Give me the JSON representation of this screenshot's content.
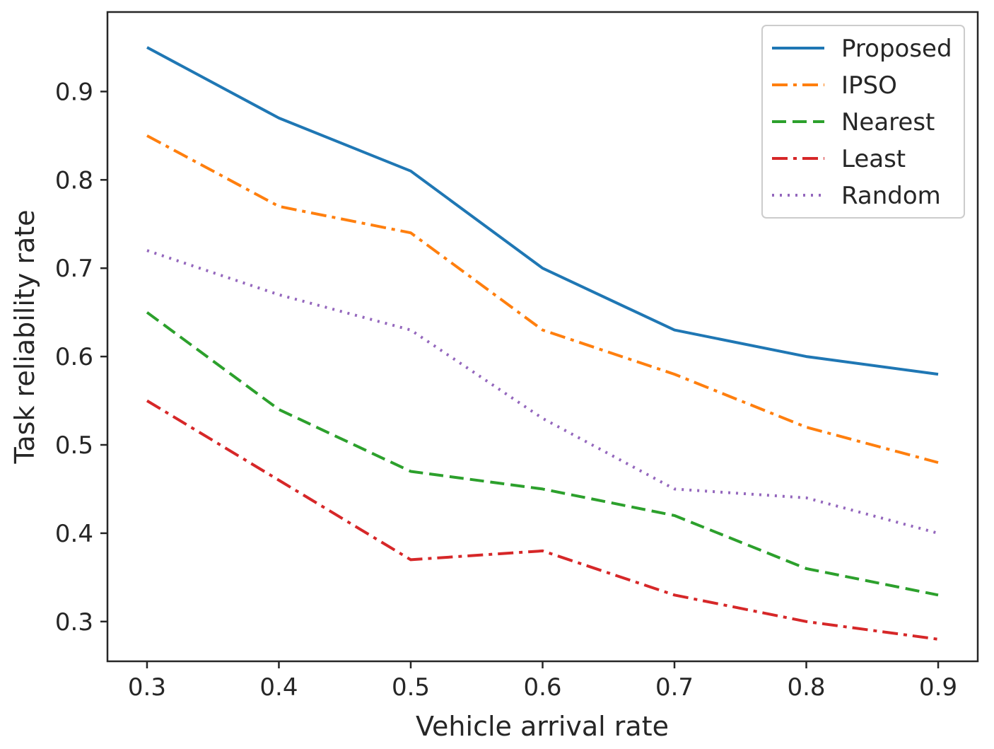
{
  "chart_data": {
    "type": "line",
    "title": "",
    "xlabel": "Vehicle arrival rate",
    "ylabel": "Task reliability rate",
    "x": [
      0.3,
      0.4,
      0.5,
      0.6,
      0.7,
      0.8,
      0.9
    ],
    "x_tick_labels": [
      "0.3",
      "0.4",
      "0.5",
      "0.6",
      "0.7",
      "0.8",
      "0.9"
    ],
    "y_ticks": [
      0.3,
      0.4,
      0.5,
      0.6,
      0.7,
      0.8,
      0.9
    ],
    "y_tick_labels": [
      "0.3",
      "0.4",
      "0.5",
      "0.6",
      "0.7",
      "0.8",
      "0.9"
    ],
    "xlim": [
      0.27,
      0.93
    ],
    "ylim": [
      0.255,
      0.99
    ],
    "grid": false,
    "legend_position": "top-right",
    "series": [
      {
        "name": "Proposed",
        "color": "#1f77b4",
        "style": "solid",
        "values": [
          0.95,
          0.87,
          0.81,
          0.7,
          0.63,
          0.6,
          0.58
        ]
      },
      {
        "name": "IPSO",
        "color": "#ff7f0e",
        "style": "dashdot",
        "values": [
          0.85,
          0.77,
          0.74,
          0.63,
          0.58,
          0.52,
          0.48
        ]
      },
      {
        "name": "Nearest",
        "color": "#2ca02c",
        "style": "dashed",
        "values": [
          0.65,
          0.54,
          0.47,
          0.45,
          0.42,
          0.36,
          0.33
        ]
      },
      {
        "name": "Least",
        "color": "#d62728",
        "style": "dashdot",
        "values": [
          0.55,
          0.46,
          0.37,
          0.38,
          0.33,
          0.3,
          0.28
        ]
      },
      {
        "name": "Random",
        "color": "#9467bd",
        "style": "dotted",
        "values": [
          0.72,
          0.67,
          0.63,
          0.53,
          0.45,
          0.44,
          0.4
        ]
      }
    ]
  }
}
